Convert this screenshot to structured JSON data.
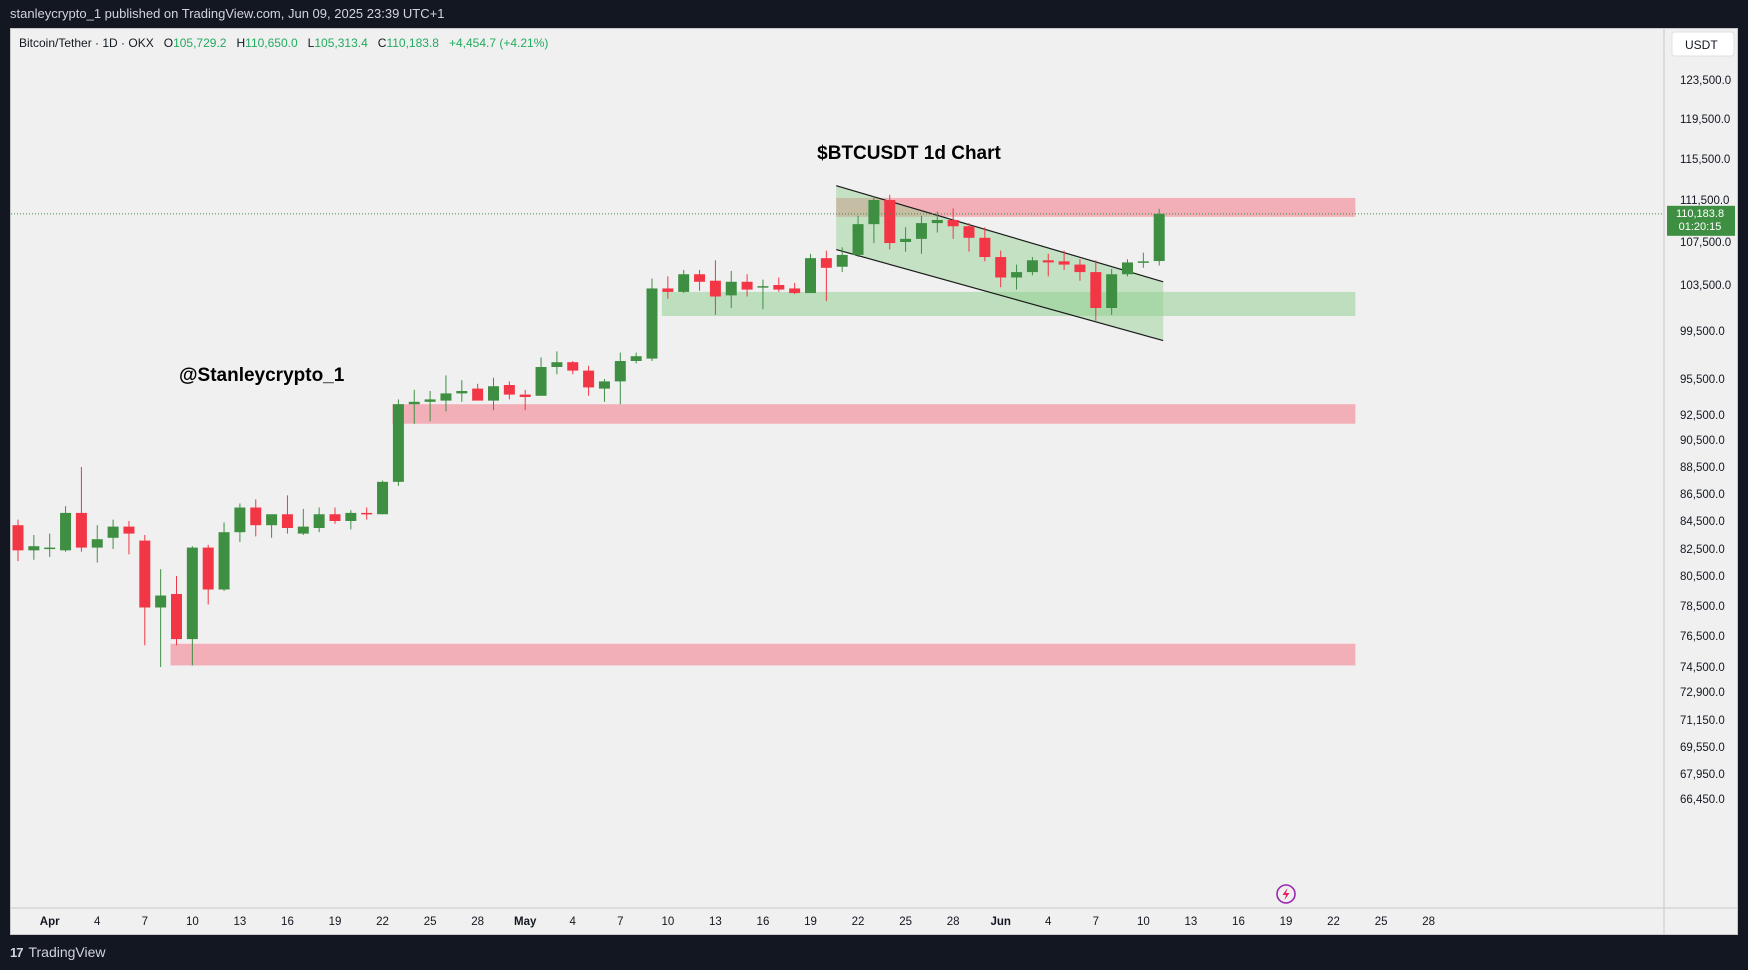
{
  "header": {
    "published_text": "stanleycrypto_1 published on TradingView.com, Jun 09, 2025 23:39 UTC+1"
  },
  "legend": {
    "symbol": "Bitcoin/Tether · 1D · OKX",
    "open_label": "O",
    "open": "105,729.2",
    "high_label": "H",
    "high": "110,650.0",
    "low_label": "L",
    "low": "105,313.4",
    "close_label": "C",
    "close": "110,183.8",
    "change": "+4,454.7 (+4.21%)"
  },
  "price_axis": {
    "currency": "USDT",
    "last_price": "110,183.8",
    "countdown": "01:20:15"
  },
  "footer": {
    "brand": "TradingView"
  },
  "colors": {
    "up": "#3f8f43",
    "down": "#f23645",
    "resistance_zone": "#f3a7b0",
    "support_zone": "#b4dcb4",
    "background": "#f0f0f0"
  },
  "chart_data": {
    "type": "candlestick",
    "title": "$BTCUSDT 1d Chart",
    "watermark": "@Stanleycrypto_1",
    "x_tick_labels": [
      "Apr",
      "4",
      "7",
      "10",
      "13",
      "16",
      "19",
      "22",
      "25",
      "28",
      "May",
      "4",
      "7",
      "10",
      "13",
      "16",
      "19",
      "22",
      "25",
      "28",
      "Jun",
      "4",
      "7",
      "10",
      "13",
      "16",
      "19",
      "22",
      "25",
      "28"
    ],
    "y_tick_labels": [
      "123,500.0",
      "119,500.0",
      "115,500.0",
      "111,500.0",
      "107,500.0",
      "103,500.0",
      "99,500.0",
      "95,500.0",
      "92,500.0",
      "90,500.0",
      "88,500.0",
      "86,500.0",
      "84,500.0",
      "82,500.0",
      "80,500.0",
      "78,500.0",
      "76,500.0",
      "74,500.0",
      "72,900.0",
      "71,150.0",
      "69,550.0",
      "67,950.0",
      "66,450.0"
    ],
    "y_tick_values": [
      123500,
      119500,
      115500,
      111500,
      107500,
      103500,
      99500,
      95500,
      92500,
      90500,
      88500,
      86500,
      84500,
      82500,
      80500,
      78500,
      76500,
      74500,
      72900,
      71150,
      69550,
      67950,
      66450
    ],
    "x_first_date": "Mar 30",
    "candles": [
      {
        "o": 84200,
        "h": 84600,
        "l": 81600,
        "c": 82400
      },
      {
        "o": 82400,
        "h": 83500,
        "l": 81700,
        "c": 82700
      },
      {
        "o": 82500,
        "h": 83600,
        "l": 81900,
        "c": 82600
      },
      {
        "o": 82400,
        "h": 85600,
        "l": 82300,
        "c": 85100
      },
      {
        "o": 85100,
        "h": 88500,
        "l": 82300,
        "c": 82600
      },
      {
        "o": 82600,
        "h": 84200,
        "l": 81500,
        "c": 83200
      },
      {
        "o": 83300,
        "h": 84600,
        "l": 82500,
        "c": 84100
      },
      {
        "o": 84100,
        "h": 84500,
        "l": 82100,
        "c": 83600
      },
      {
        "o": 83100,
        "h": 83500,
        "l": 75900,
        "c": 78400
      },
      {
        "o": 78400,
        "h": 81000,
        "l": 74500,
        "c": 79200
      },
      {
        "o": 79300,
        "h": 80500,
        "l": 75900,
        "c": 76300
      },
      {
        "o": 76300,
        "h": 82700,
        "l": 74600,
        "c": 82600
      },
      {
        "o": 82600,
        "h": 82800,
        "l": 78600,
        "c": 79600
      },
      {
        "o": 79600,
        "h": 84400,
        "l": 79500,
        "c": 83700
      },
      {
        "o": 83700,
        "h": 85800,
        "l": 83000,
        "c": 85500
      },
      {
        "o": 85500,
        "h": 86100,
        "l": 83400,
        "c": 84200
      },
      {
        "o": 84200,
        "h": 84800,
        "l": 83300,
        "c": 85000
      },
      {
        "o": 85000,
        "h": 86400,
        "l": 83600,
        "c": 84000
      },
      {
        "o": 83600,
        "h": 85400,
        "l": 83500,
        "c": 84100
      },
      {
        "o": 84000,
        "h": 85500,
        "l": 83700,
        "c": 85000
      },
      {
        "o": 85000,
        "h": 85500,
        "l": 84300,
        "c": 84500
      },
      {
        "o": 84500,
        "h": 85300,
        "l": 83900,
        "c": 85100
      },
      {
        "o": 85100,
        "h": 85500,
        "l": 84600,
        "c": 85000
      },
      {
        "o": 85000,
        "h": 87500,
        "l": 85000,
        "c": 87400
      },
      {
        "o": 87400,
        "h": 93800,
        "l": 87100,
        "c": 93400
      },
      {
        "o": 93400,
        "h": 94600,
        "l": 91800,
        "c": 93600
      },
      {
        "o": 93600,
        "h": 94500,
        "l": 92000,
        "c": 93800
      },
      {
        "o": 93700,
        "h": 95800,
        "l": 92800,
        "c": 94300
      },
      {
        "o": 94300,
        "h": 95400,
        "l": 93600,
        "c": 94500
      },
      {
        "o": 94700,
        "h": 95100,
        "l": 93900,
        "c": 93700
      },
      {
        "o": 93700,
        "h": 95600,
        "l": 92900,
        "c": 94900
      },
      {
        "o": 95000,
        "h": 95300,
        "l": 93800,
        "c": 94200
      },
      {
        "o": 94200,
        "h": 94600,
        "l": 92900,
        "c": 94000
      },
      {
        "o": 94100,
        "h": 97300,
        "l": 94100,
        "c": 96500
      },
      {
        "o": 96500,
        "h": 97800,
        "l": 95900,
        "c": 96900
      },
      {
        "o": 96900,
        "h": 97000,
        "l": 95900,
        "c": 96200
      },
      {
        "o": 96200,
        "h": 96600,
        "l": 94100,
        "c": 94800
      },
      {
        "o": 94700,
        "h": 95500,
        "l": 93600,
        "c": 95300
      },
      {
        "o": 95300,
        "h": 97700,
        "l": 93400,
        "c": 97000
      },
      {
        "o": 97000,
        "h": 97700,
        "l": 96800,
        "c": 97400
      },
      {
        "o": 97200,
        "h": 104100,
        "l": 97000,
        "c": 103200
      },
      {
        "o": 103200,
        "h": 104300,
        "l": 102300,
        "c": 102900
      },
      {
        "o": 102900,
        "h": 104900,
        "l": 102800,
        "c": 104500
      },
      {
        "o": 104500,
        "h": 104900,
        "l": 103000,
        "c": 103800
      },
      {
        "o": 103900,
        "h": 105800,
        "l": 100900,
        "c": 102500
      },
      {
        "o": 102600,
        "h": 104800,
        "l": 101500,
        "c": 103800
      },
      {
        "o": 103800,
        "h": 104500,
        "l": 102500,
        "c": 103100
      },
      {
        "o": 103300,
        "h": 104000,
        "l": 101400,
        "c": 103400
      },
      {
        "o": 103500,
        "h": 104200,
        "l": 102900,
        "c": 103100
      },
      {
        "o": 103200,
        "h": 103700,
        "l": 102700,
        "c": 102800
      },
      {
        "o": 102800,
        "h": 106400,
        "l": 102800,
        "c": 106000
      },
      {
        "o": 106000,
        "h": 106700,
        "l": 102100,
        "c": 105100
      },
      {
        "o": 105200,
        "h": 107000,
        "l": 104700,
        "c": 106300
      },
      {
        "o": 106300,
        "h": 110000,
        "l": 106100,
        "c": 109200
      },
      {
        "o": 109200,
        "h": 111900,
        "l": 107400,
        "c": 111500
      },
      {
        "o": 111500,
        "h": 112000,
        "l": 106800,
        "c": 107400
      },
      {
        "o": 107500,
        "h": 108900,
        "l": 106600,
        "c": 107800
      },
      {
        "o": 107800,
        "h": 110000,
        "l": 106400,
        "c": 109300
      },
      {
        "o": 109300,
        "h": 110400,
        "l": 108400,
        "c": 109600
      },
      {
        "o": 109600,
        "h": 110700,
        "l": 107800,
        "c": 109000
      },
      {
        "o": 109000,
        "h": 109300,
        "l": 106600,
        "c": 107900
      },
      {
        "o": 107900,
        "h": 108900,
        "l": 105700,
        "c": 106100
      },
      {
        "o": 106100,
        "h": 106700,
        "l": 103300,
        "c": 104200
      },
      {
        "o": 104200,
        "h": 105400,
        "l": 103100,
        "c": 104700
      },
      {
        "o": 104700,
        "h": 106100,
        "l": 104400,
        "c": 105800
      },
      {
        "o": 105800,
        "h": 106400,
        "l": 104300,
        "c": 105600
      },
      {
        "o": 105700,
        "h": 106700,
        "l": 104900,
        "c": 105400
      },
      {
        "o": 105400,
        "h": 105900,
        "l": 103900,
        "c": 104700
      },
      {
        "o": 104700,
        "h": 105800,
        "l": 100400,
        "c": 101500
      },
      {
        "o": 101500,
        "h": 105000,
        "l": 100900,
        "c": 104500
      },
      {
        "o": 104500,
        "h": 105900,
        "l": 104300,
        "c": 105600
      },
      {
        "o": 105600,
        "h": 106500,
        "l": 105100,
        "c": 105700
      },
      {
        "o": 105729.2,
        "h": 110650.0,
        "l": 105313.4,
        "c": 110183.8
      }
    ],
    "zones": [
      {
        "kind": "resistance",
        "from_candle": 52,
        "to_date": "Jun 21",
        "low": 109900,
        "high": 111700
      },
      {
        "kind": "support",
        "from_candle": 41,
        "to_date": "Jun 21",
        "low": 100800,
        "high": 102900
      },
      {
        "kind": "resistance",
        "from_candle": 24,
        "to_date": "Jun 21",
        "low": 91800,
        "high": 93400
      },
      {
        "kind": "resistance",
        "from_candle": 10,
        "to_date": "Jun 21",
        "low": 74600,
        "high": 76000
      }
    ],
    "channel": {
      "start_candle": 52,
      "end_candle": 72,
      "upper": [
        112900,
        103800
      ],
      "lower": [
        106800,
        98700
      ]
    },
    "last_price_line": 110183.8
  }
}
